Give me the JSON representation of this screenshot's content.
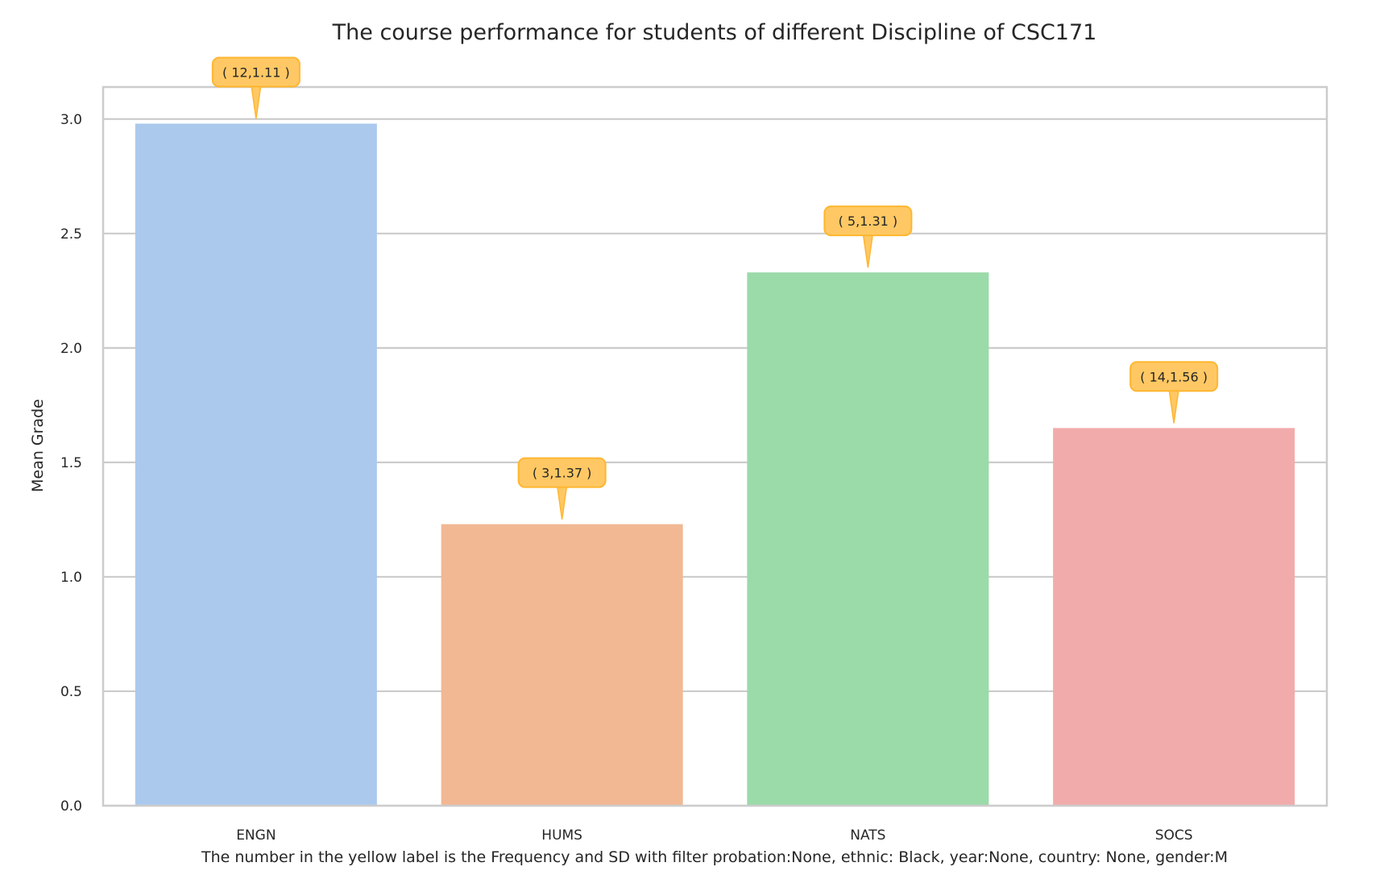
{
  "chart_data": {
    "type": "bar",
    "title": "The course performance for students of different Discipline of CSC171",
    "xlabel": "The number in the yellow label is the Frequency and SD with filter probation:None, ethnic: Black, year:None, country: None, gender:M",
    "ylabel": "Mean Grade",
    "categories": [
      "ENGN",
      "HUMS",
      "NATS",
      "SOCS"
    ],
    "values": [
      2.98,
      1.23,
      2.33,
      1.65
    ],
    "annotations": [
      "( 12,1.11 )",
      "( 3,1.37 )",
      "( 5,1.31 )",
      "( 14,1.56 )"
    ],
    "colors": [
      "#abc9ed",
      "#f1b893",
      "#9bdaa9",
      "#f2abab"
    ],
    "annotation_color": "#ffc864",
    "annotation_edge_color": "#ffb630",
    "ylim": [
      0,
      3.14
    ],
    "yticks": [
      0.0,
      0.5,
      1.0,
      1.5,
      2.0,
      2.5,
      3.0
    ],
    "ytick_labels": [
      "0.0",
      "0.5",
      "1.0",
      "1.5",
      "2.0",
      "2.5",
      "3.0"
    ],
    "grid": true,
    "legend": "none"
  }
}
